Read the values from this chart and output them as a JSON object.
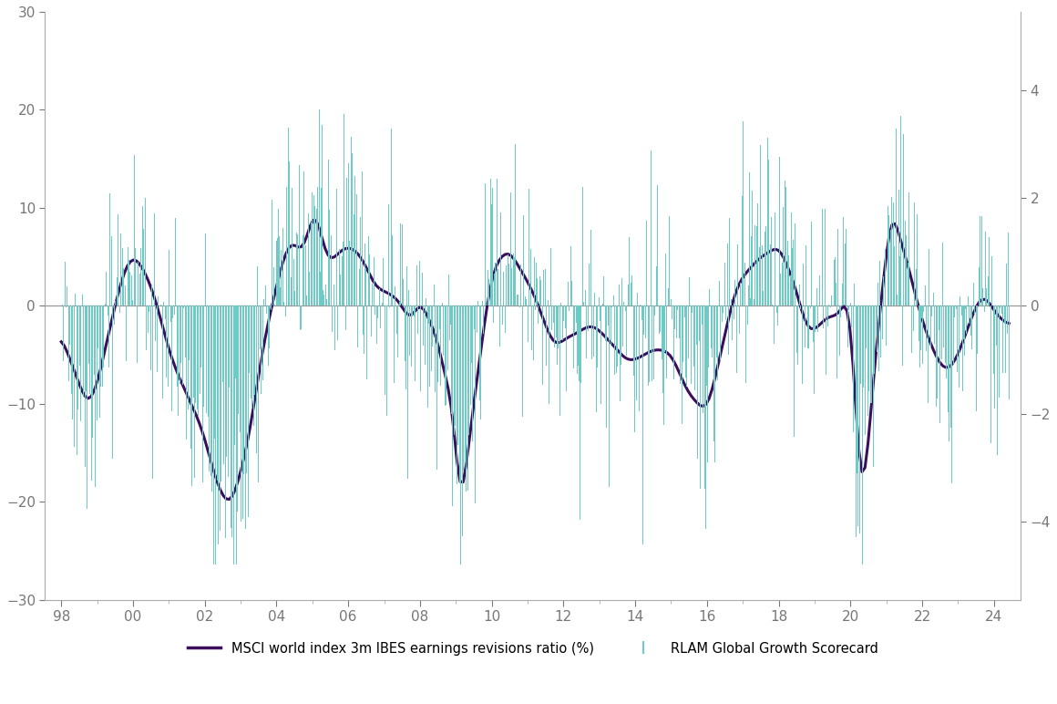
{
  "title": "",
  "left_ylim": [
    -30,
    30
  ],
  "right_ylim": [
    -5.45,
    5.45
  ],
  "left_yticks": [
    -30,
    -20,
    -10,
    0,
    10,
    20,
    30
  ],
  "right_yticks": [
    -4,
    -2,
    0,
    2,
    4
  ],
  "xtick_labels": [
    "98",
    "00",
    "02",
    "04",
    "06",
    "08",
    "10",
    "12",
    "14",
    "16",
    "18",
    "20",
    "22",
    "24"
  ],
  "line_color": "#3b0d5c",
  "bar_color": "#6ecac4",
  "legend_line_label": "MSCI world index 3m IBES earnings revisions ratio (%)",
  "legend_bar_label": "RLAM Global Growth Scorecard",
  "background_color": "#ffffff",
  "line_width": 2.2,
  "zero_line_color": "#999999",
  "axis_color": "#aaaaaa",
  "tick_color": "#777777",
  "tick_fontsize": 11
}
